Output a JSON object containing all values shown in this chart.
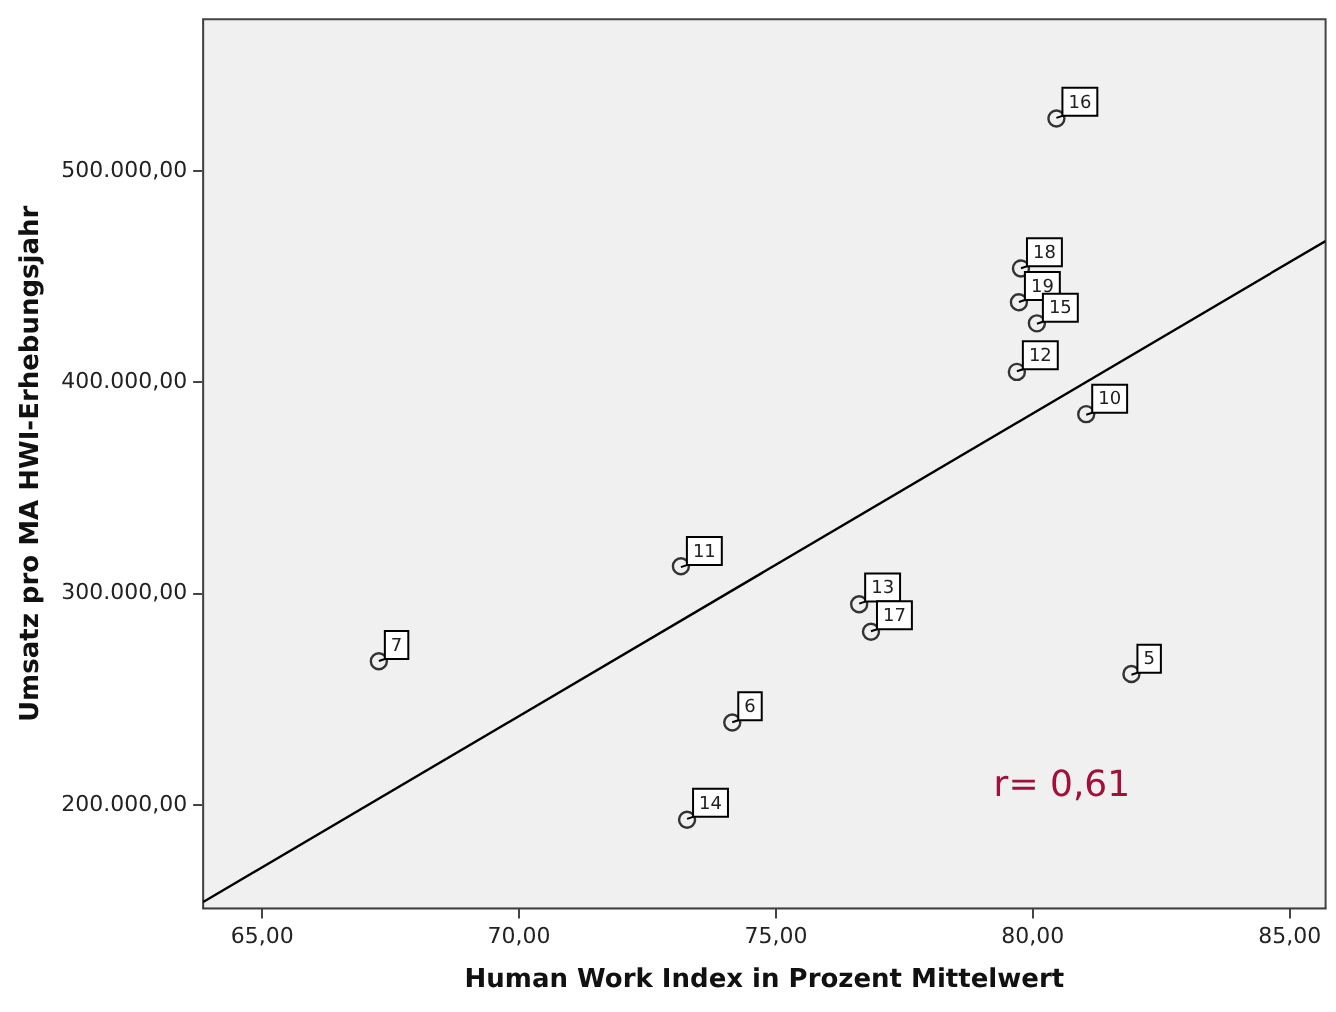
{
  "chart_data": {
    "type": "scatter",
    "xlabel": "Human Work Index in Prozent Mittelwert",
    "ylabel": "Umsatz pro MA HWI-Erhebungsjahr",
    "xlim": [
      63.85,
      85.7
    ],
    "ylim": [
      151000,
      572000
    ],
    "xticks": [
      {
        "value": 65,
        "label": "65,00"
      },
      {
        "value": 70,
        "label": "70,00"
      },
      {
        "value": 75,
        "label": "75,00"
      },
      {
        "value": 80,
        "label": "80,00"
      },
      {
        "value": 85,
        "label": "85,00"
      }
    ],
    "yticks": [
      {
        "value": 200000,
        "label": "200.000,00"
      },
      {
        "value": 300000,
        "label": "300.000,00"
      },
      {
        "value": 400000,
        "label": "400.000,00"
      },
      {
        "value": 500000,
        "label": "500.000,00"
      }
    ],
    "grid": false,
    "legend": false,
    "series": [
      {
        "marker": "circle",
        "color": "#333333",
        "x": [
          80.46,
          79.77,
          79.73,
          80.08,
          79.69,
          81.04,
          73.15,
          67.27,
          76.62,
          76.85,
          81.92,
          74.15,
          73.27
        ],
        "values": [
          525000,
          454000,
          438000,
          428000,
          405000,
          385000,
          313000,
          268000,
          295000,
          282000,
          262000,
          239000,
          193000
        ]
      },
      {
        "type": "line",
        "marker": "none",
        "color": "#000000",
        "x": [
          63.85,
          85.7
        ],
        "values": [
          154000,
          467000
        ]
      }
    ],
    "annotations": [
      {
        "text": "16",
        "x": 80.46,
        "y": 525300
      },
      {
        "text": "18",
        "x": 79.77,
        "y": 454100
      },
      {
        "text": "19",
        "x": 79.73,
        "y": 438100
      },
      {
        "text": "15",
        "x": 80.08,
        "y": 427800
      },
      {
        "text": "12",
        "x": 79.69,
        "y": 405300
      },
      {
        "text": "10",
        "x": 81.04,
        "y": 384700
      },
      {
        "text": "11",
        "x": 73.15,
        "y": 312600
      },
      {
        "text": "7",
        "x": 67.27,
        "y": 268100
      },
      {
        "text": "13",
        "x": 76.62,
        "y": 295300
      },
      {
        "text": "17",
        "x": 76.85,
        "y": 282200
      },
      {
        "text": "5",
        "x": 81.92,
        "y": 261600
      },
      {
        "text": "6",
        "x": 74.15,
        "y": 239100
      },
      {
        "text": "14",
        "x": 73.27,
        "y": 193400
      },
      "r= 0,61"
    ]
  }
}
